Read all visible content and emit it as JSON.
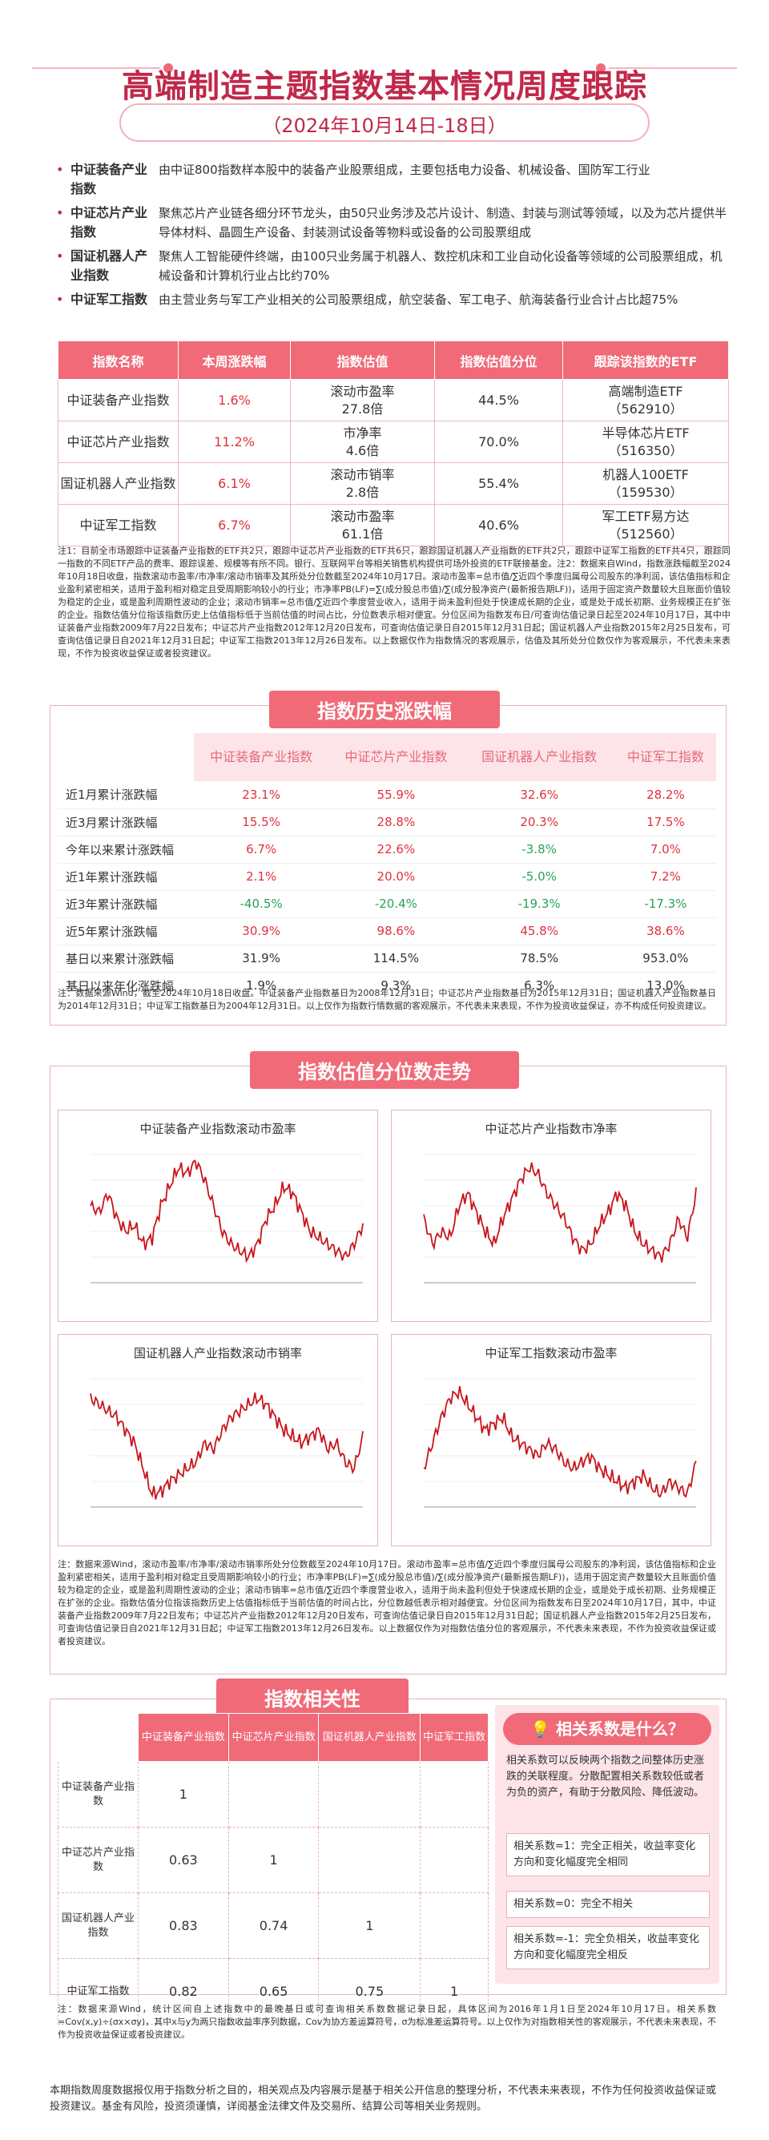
{
  "header": {
    "title": "高端制造主题指数基本情况周度跟踪",
    "subtitle": "（2024年10月14日-18日）"
  },
  "intro": [
    {
      "name": "中证装备产业指数",
      "desc": "由中证800指数样本股中的装备产业股票组成，主要包括电力设备、机械设备、国防军工行业"
    },
    {
      "name": "中证芯片产业指数",
      "desc": "聚焦芯片产业链各细分环节龙头，由50只业务涉及芯片设计、制造、封装与测试等领域，以及为芯片提供半导体材料、晶圆生产设备、封装测试设备等物料或设备的公司股票组成"
    },
    {
      "name": "国证机器人产业指数",
      "desc": "聚焦人工智能硬件终端，由100只业务属于机器人、数控机床和工业自动化设备等领域的公司股票组成，机械设备和计算机行业占比约70%"
    },
    {
      "name": "中证军工指数",
      "desc": "由主营业务与军工产业相关的公司股票组成，航空装备、军工电子、航海装备行业合计占比超75%"
    }
  ],
  "table1": {
    "headers": [
      "指数名称",
      "本周涨跌幅",
      "指数估值",
      "指数估值分位",
      "跟踪该指数的ETF"
    ],
    "rows": [
      {
        "name": "中证装备产业指数",
        "change": "1.6%",
        "val_label": "滚动市盈率",
        "val": "27.8倍",
        "pct": "44.5%",
        "etf": "高端制造ETF",
        "code": "（562910）"
      },
      {
        "name": "中证芯片产业指数",
        "change": "11.2%",
        "val_label": "市净率",
        "val": "4.6倍",
        "pct": "70.0%",
        "etf": "半导体芯片ETF",
        "code": "（516350）"
      },
      {
        "name": "国证机器人产业指数",
        "change": "6.1%",
        "val_label": "滚动市销率",
        "val": "2.8倍",
        "pct": "55.4%",
        "etf": "机器人100ETF",
        "code": "（159530）"
      },
      {
        "name": "中证军工指数",
        "change": "6.7%",
        "val_label": "滚动市盈率",
        "val": "61.1倍",
        "pct": "40.6%",
        "etf": "军工ETF易方达",
        "code": "（512560）"
      }
    ]
  },
  "note1": "注1：目前全市场跟踪中证装备产业指数的ETF共2只，跟踪中证芯片产业指数的ETF共6只，跟踪国证机器人产业指数的ETF共2只，跟踪中证军工指数的ETF共4只，跟踪同一指数的不同ETF产品的费率、跟踪误差、规模等有所不同。银行、互联网平台等相关销售机构提供可场外投资的ETF联接基金。注2：数据来自Wind，指数涨跌幅截至2024年10月18日收盘，指数滚动市盈率/市净率/滚动市销率及其所处分位数截至2024年10月17日。滚动市盈率=总市值/∑近四个季度归属母公司股东的净利润，该估值指标和企业盈利紧密相关，适用于盈利相对稳定且受周期影响较小的行业；市净率PB(LF)=∑(成分股总市值)/∑(成分股净资产(最新报告期LF))，适用于固定资产数量较大且账面价值较为稳定的企业，或是盈利周期性波动的企业；滚动市销率=总市值/∑近四个季度营业收入，适用于尚未盈利但处于快速成长期的企业，或是处于成长初期、业务规模正在扩张的企业。指数估值分位指该指数历史上估值指标低于当前估值的时间占比，分位数表示相对便宜。分位区间为指数发布日/可查询估值记录日起至2024年10月17日，其中中证装备产业指数2009年7月22日发布；中证芯片产业指数2012年12月20日发布，可查询估值记录日自2015年12月31日起；国证机器人产业指数2015年2月25日发布，可查询估值记录日自2021年12月31日起；中证军工指数2013年12月26日发布。以上数据仅作为指数情况的客观展示，估值及其所处分位数仅作为客观展示，不代表未来表现，不作为投资收益保证或者投资建议。",
  "section2": {
    "title": "指数历史涨跌幅",
    "headers": [
      "中证装备产业指数",
      "中证芯片产业指数",
      "国证机器人产业指数",
      "中证军工指数"
    ],
    "rows": [
      {
        "label": "近1月累计涨跌幅",
        "v": [
          "23.1%",
          "55.9%",
          "32.6%",
          "28.2%"
        ]
      },
      {
        "label": "近3月累计涨跌幅",
        "v": [
          "15.5%",
          "28.8%",
          "20.3%",
          "17.5%"
        ]
      },
      {
        "label": "今年以来累计涨跌幅",
        "v": [
          "6.7%",
          "22.6%",
          "-3.8%",
          "7.0%"
        ]
      },
      {
        "label": "近1年累计涨跌幅",
        "v": [
          "2.1%",
          "20.0%",
          "-5.0%",
          "7.2%"
        ]
      },
      {
        "label": "近3年累计涨跌幅",
        "v": [
          "-40.5%",
          "-20.4%",
          "-19.3%",
          "-17.3%"
        ]
      },
      {
        "label": "近5年累计涨跌幅",
        "v": [
          "30.9%",
          "98.6%",
          "45.8%",
          "38.6%"
        ]
      },
      {
        "label": "基日以来累计涨跌幅",
        "v": [
          "31.9%",
          "114.5%",
          "78.5%",
          "953.0%"
        ]
      },
      {
        "label": "基日以来年化涨跌幅",
        "v": [
          "1.9%",
          "9.3%",
          "6.3%",
          "13.0%"
        ]
      }
    ],
    "note": "注：数据来源Wind，截至2024年10月18日收盘。中证装备产业指数基日为2008年12月31日；中证芯片产业指数基日为2015年12月31日；国证机器人产业指数基日为2014年12月31日；中证军工指数基日为2004年12月31日。以上仅作为指数行情数据的客观展示，不代表未来表现，不作为投资收益保证，亦不构成任何投资建议。"
  },
  "section3": {
    "title": "指数估值分位数走势",
    "charts": [
      {
        "title": "中证装备产业指数滚动市盈率"
      },
      {
        "title": "中证芯片产业指数市净率"
      },
      {
        "title": "国证机器人产业指数滚动市销率"
      },
      {
        "title": "中证军工指数滚动市盈率"
      }
    ],
    "note": "注：数据来源Wind，滚动市盈率/市净率/滚动市销率所处分位数截至2024年10月17日。滚动市盈率=总市值/∑近四个季度归属母公司股东的净利润，该估值指标和企业盈利紧密相关，适用于盈利相对稳定且受周期影响较小的行业；市净率PB(LF)=∑(成分股总市值)/∑(成分股净资产(最新报告期LF))，适用于固定资产数量较大且账面价值较为稳定的企业，或是盈利周期性波动的企业；滚动市销率=总市值/∑近四个季度营业收入，适用于尚未盈利但处于快速成长期的企业，或是处于成长初期、业务规模正在扩张的企业。指数估值分位指该指数历史上估值指标低于当前估值的时间占比，分位数越低表示相对越便宜。分位区间为指数发布日至2024年10月17日，其中，中证装备产业指数2009年7月22日发布；中证芯片产业指数2012年12月20日发布，可查询估值记录日自2015年12月31日起；国证机器人产业指数2015年2月25日发布，可查询估值记录日自2021年12月31日起；中证军工指数2013年12月26日发布。以上数据仅作为对指数估值分位的客观展示，不代表未来表现，不作为投资收益保证或者投资建议。"
  },
  "section4": {
    "title": "指数相关性",
    "headers": [
      "中证装备产业指数",
      "中证芯片产业指数",
      "国证机器人产业指数",
      "中证军工指数"
    ],
    "rows": [
      {
        "label": "中证装备产业指数",
        "v": [
          "1",
          "",
          "",
          ""
        ]
      },
      {
        "label": "中证芯片产业指数",
        "v": [
          "0.63",
          "1",
          "",
          ""
        ]
      },
      {
        "label": "国证机器人产业指数",
        "v": [
          "0.83",
          "0.74",
          "1",
          ""
        ]
      },
      {
        "label": "中证军工指数",
        "v": [
          "0.82",
          "0.65",
          "0.75",
          "1"
        ]
      }
    ],
    "faq_title": "相关系数是什么？",
    "faq_text": "相关系数可以反映两个指数之间整体历史涨跌的关联程度。分散配置相关系数较低或者为负的资产，有助于分散风险、降低波动。",
    "faq_items": [
      "相关系数=1：完全正相关，收益率变化方向和变化幅度完全相同",
      "相关系数=0：完全不相关",
      "相关系数=-1：完全负相关，收益率变化方向和变化幅度完全相反"
    ],
    "note": "注：数据来源Wind，统计区间自上述指数中的最晚基日或可查询相关系数数据记录日起，具体区间为2016年1月1日至2024年10月17日。相关系数=Cov(x,y)÷(σx×σy)，其中x与y为两只指数收益率序列数据，Cov为协方差运算符号，σ为标准差运算符号。以上仅作为对指数相关性的客观展示，不代表未来表现，不作为投资收益保证或者投资建议。"
  },
  "footer": "本期指数周度数据报仅用于指数分析之目的，相关观点及内容展示是基于相关公开信息的整理分析，不代表未来表现，不作为任何投资收益保证或投资建议。基金有风险，投资须谨慎，详阅基金法律文件及交易所、结算公司等相关业务规则。",
  "colors": {
    "accent": "#f06a78",
    "title": "#c0284a",
    "red": "#e0323c",
    "green": "#27a35a",
    "line": "#c8151d"
  }
}
